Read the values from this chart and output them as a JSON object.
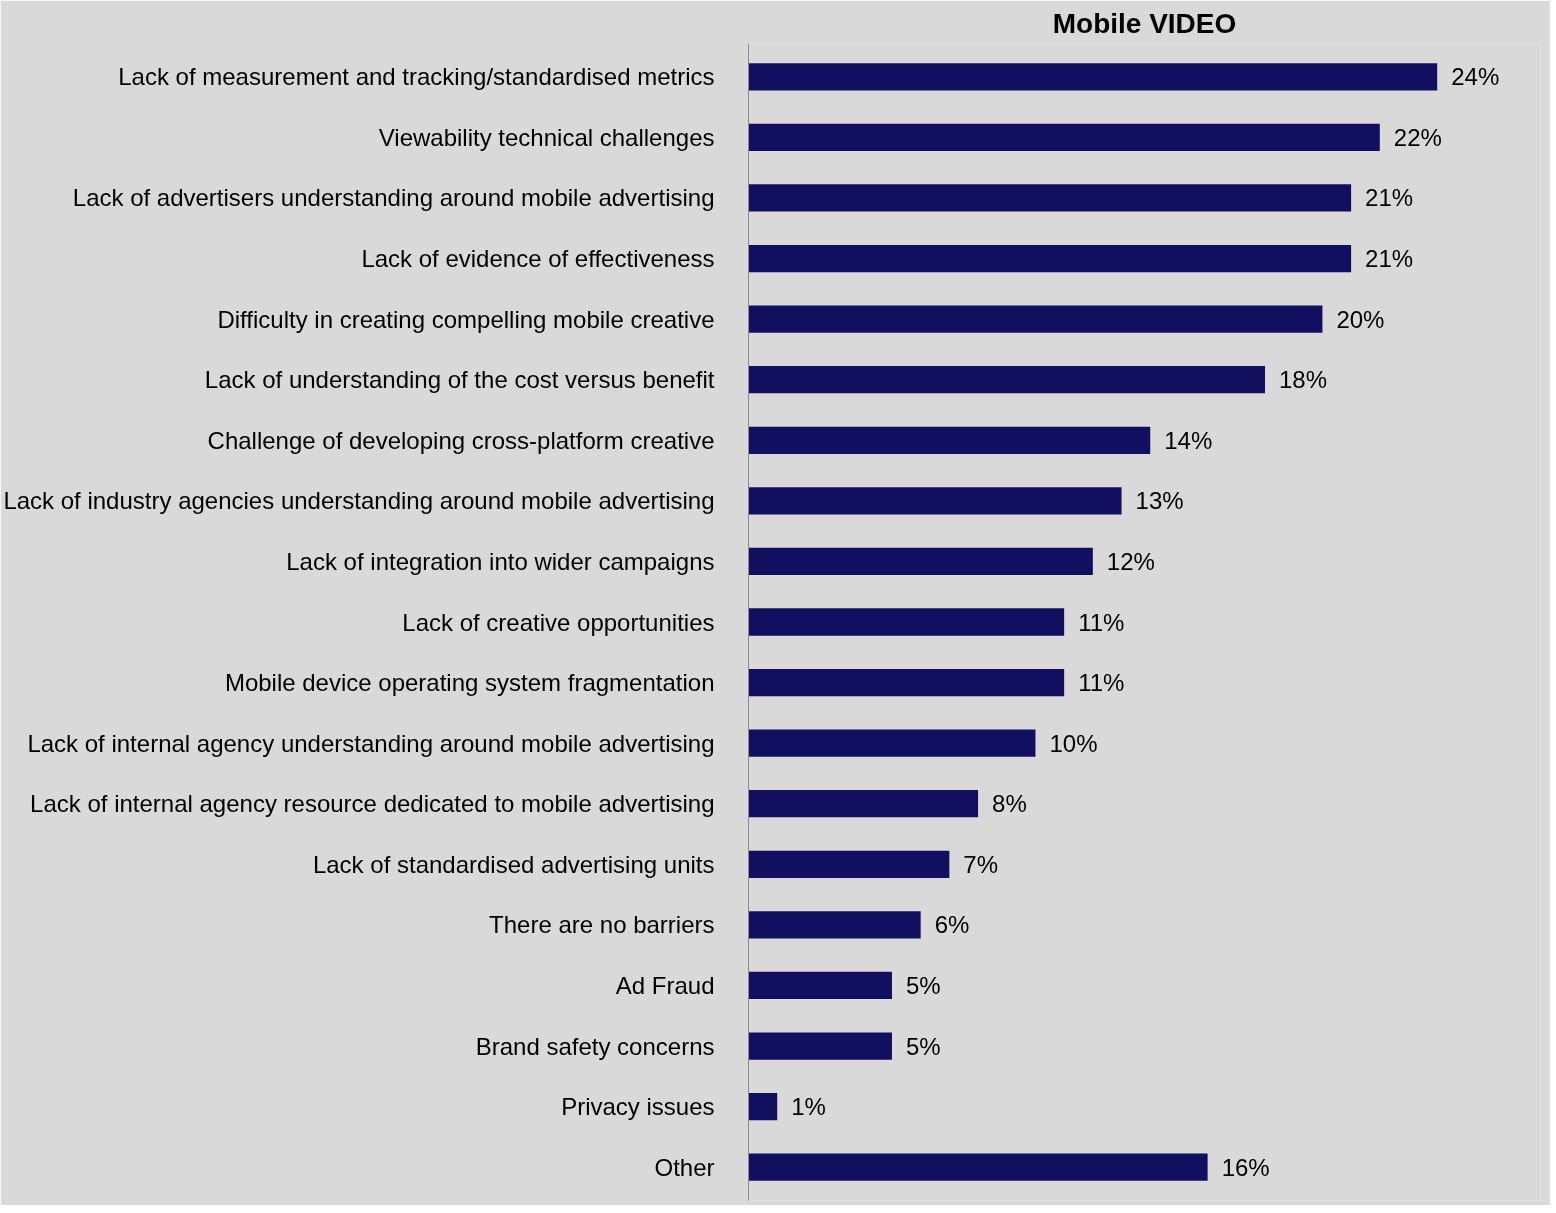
{
  "chart_data": {
    "type": "bar",
    "orientation": "horizontal",
    "title": "Mobile VIDEO",
    "categories": [
      "Lack of measurement and tracking/standardised metrics",
      "Viewability technical challenges",
      "Lack of advertisers understanding around mobile advertising",
      "Lack of evidence of effectiveness",
      "Difficulty in creating compelling mobile creative",
      "Lack of understanding of the cost versus benefit",
      "Challenge of developing cross-platform creative",
      "Lack of industry agencies understanding around mobile advertising",
      "Lack of integration into wider campaigns",
      "Lack of creative opportunities",
      "Mobile device operating system fragmentation",
      "Lack of internal agency understanding around mobile advertising",
      "Lack of internal agency resource dedicated to mobile advertising",
      "Lack of standardised advertising units",
      "There are no barriers",
      "Ad Fraud",
      "Brand safety concerns",
      "Privacy issues",
      "Other"
    ],
    "values": [
      24,
      22,
      21,
      21,
      20,
      18,
      14,
      13,
      12,
      11,
      11,
      10,
      8,
      7,
      6,
      5,
      5,
      1,
      16
    ],
    "value_labels": [
      "24%",
      "22%",
      "21%",
      "21%",
      "20%",
      "18%",
      "14%",
      "13%",
      "12%",
      "11%",
      "11%",
      "10%",
      "8%",
      "7%",
      "6%",
      "5%",
      "5%",
      "1%",
      "16%"
    ],
    "color": "#120f61",
    "grid": false
  }
}
